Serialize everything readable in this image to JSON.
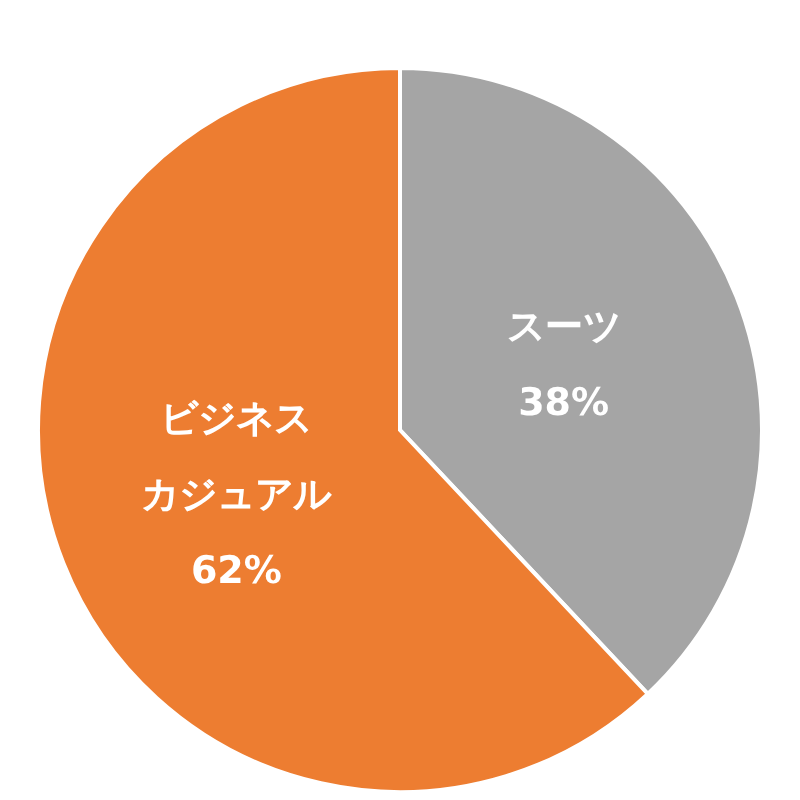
{
  "chart_data": {
    "type": "pie",
    "categories": [
      "スーツ",
      "ビジネスカジュアル"
    ],
    "values": [
      38,
      62
    ],
    "colors": [
      "#a5a5a5",
      "#ed7d31"
    ],
    "value_labels": [
      "38%",
      "62%"
    ]
  }
}
